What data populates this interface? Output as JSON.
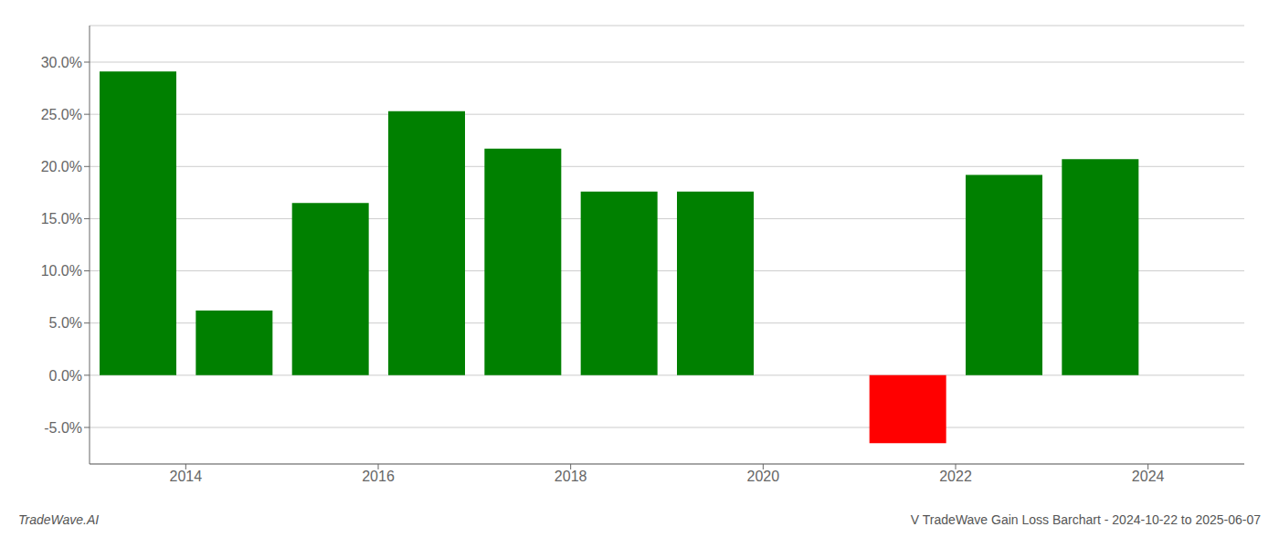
{
  "chart_data": {
    "type": "bar",
    "x": [
      2013.5,
      2014.5,
      2015.5,
      2016.5,
      2017.5,
      2018.5,
      2019.5,
      2021.5,
      2022.5,
      2023.5
    ],
    "values": [
      0.291,
      0.062,
      0.165,
      0.253,
      0.217,
      0.176,
      0.176,
      -0.065,
      0.192,
      0.207
    ],
    "colors": [
      "#008000",
      "#008000",
      "#008000",
      "#008000",
      "#008000",
      "#008000",
      "#008000",
      "#ff0000",
      "#008000",
      "#008000"
    ],
    "xlim": [
      2013.0,
      2025.0
    ],
    "xticks": [
      2014,
      2016,
      2018,
      2020,
      2022,
      2024
    ],
    "ylim": [
      -0.085,
      0.335
    ],
    "yticks": [
      {
        "value": -0.05,
        "label": "-5.0%"
      },
      {
        "value": 0.0,
        "label": "0.0%"
      },
      {
        "value": 0.05,
        "label": "5.0%"
      },
      {
        "value": 0.1,
        "label": "10.0%"
      },
      {
        "value": 0.15,
        "label": "15.0%"
      },
      {
        "value": 0.2,
        "label": "20.0%"
      },
      {
        "value": 0.25,
        "label": "25.0%"
      },
      {
        "value": 0.3,
        "label": "30.0%"
      }
    ],
    "grid": true,
    "annotations": [
      "TradeWave.AI",
      "V TradeWave Gain Loss Barchart - 2024-10-22 to 2025-06-07"
    ]
  }
}
